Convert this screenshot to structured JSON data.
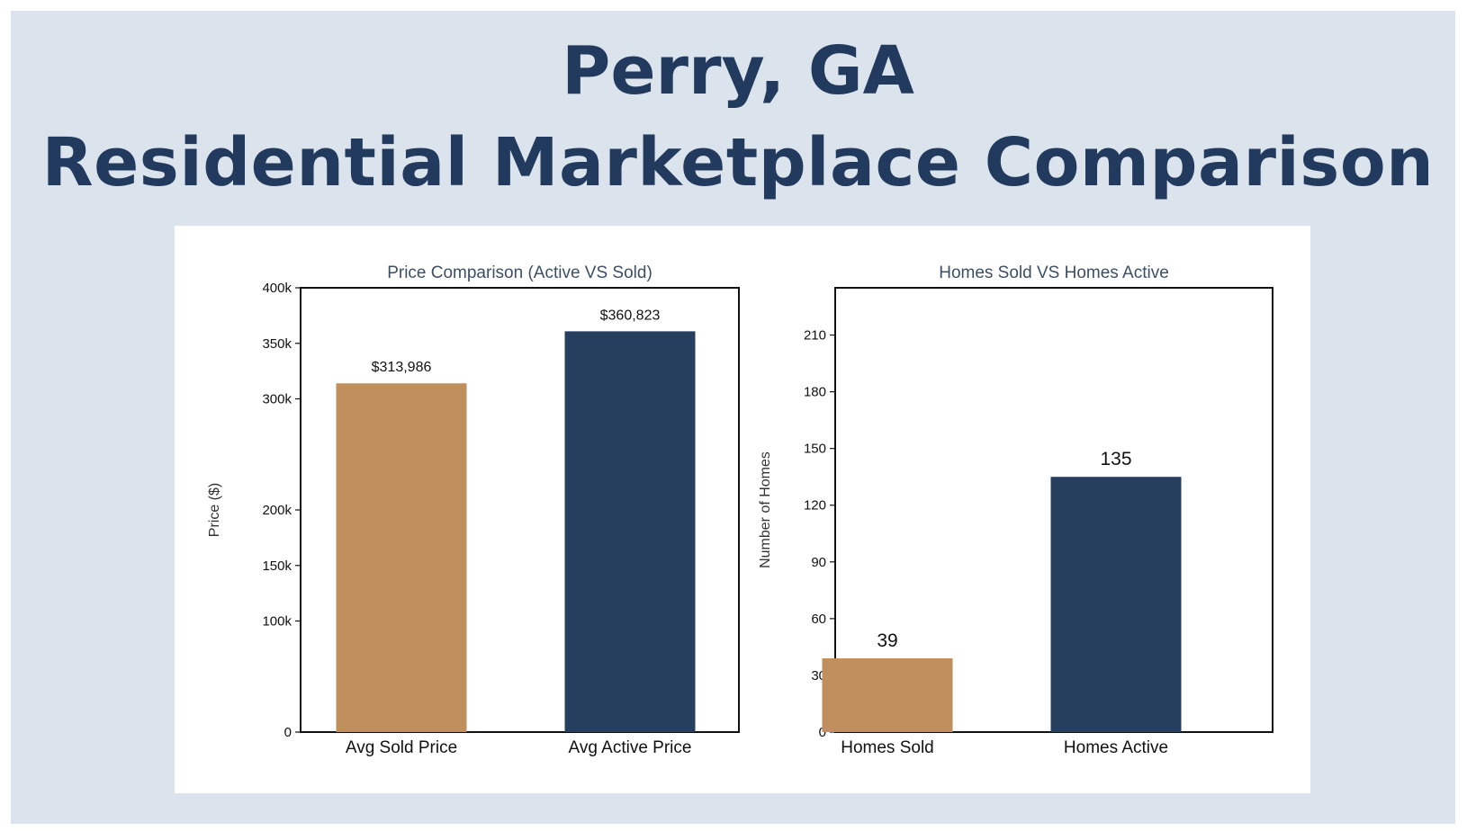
{
  "header": {
    "title_line1": "Perry,  GA",
    "title_line2": "Residential Marketplace Comparison"
  },
  "colors": {
    "sold": "#bf8f5e",
    "active": "#263f5e",
    "background": "#dbe3ec",
    "title": "#223a5e"
  },
  "chart_data": [
    {
      "type": "bar",
      "title": "Price Comparison (Active VS Sold)",
      "xlabel": "",
      "ylabel": "Price ($)",
      "ylim": [
        0,
        400000
      ],
      "categories": [
        "Avg Sold Price",
        "Avg Active Price"
      ],
      "values": [
        313986,
        360823
      ],
      "data_labels": [
        "$313,986",
        "$360,823"
      ],
      "bar_colors": [
        "#bf8f5e",
        "#263f5e"
      ],
      "ticks": [
        0,
        100000,
        150000,
        200000,
        300000,
        350000,
        400000
      ],
      "tick_labels": [
        "0",
        "100k",
        "150k",
        "200k",
        "300k",
        "350k",
        "400k"
      ],
      "grid": false
    },
    {
      "type": "bar",
      "title": "Homes Sold VS Homes Active",
      "xlabel": "",
      "ylabel": "Number of Homes",
      "ylim": [
        0,
        235
      ],
      "categories": [
        "Homes Sold",
        "Homes Active"
      ],
      "values": [
        39,
        135
      ],
      "data_labels": [
        "39",
        "135"
      ],
      "bar_colors": [
        "#bf8f5e",
        "#263f5e"
      ],
      "ticks": [
        0,
        30,
        60,
        90,
        120,
        150,
        180,
        210
      ],
      "tick_labels": [
        "0",
        "30",
        "60",
        "90",
        "120",
        "150",
        "180",
        "210"
      ],
      "grid": false
    }
  ]
}
